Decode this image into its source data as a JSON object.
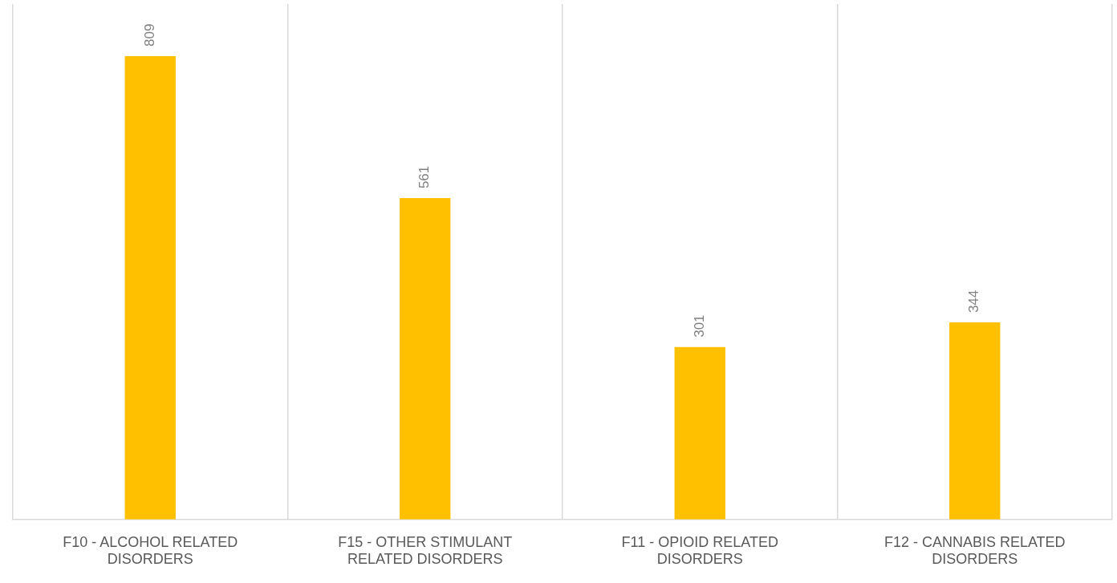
{
  "chart_data": {
    "type": "bar",
    "categories": [
      "F10 - ALCOHOL RELATED DISORDERS",
      "F15 - OTHER STIMULANT RELATED DISORDERS",
      "F11 - OPIOID RELATED DISORDERS",
      "F12 - CANNABIS RELATED DISORDERS"
    ],
    "values": [
      809,
      561,
      301,
      344
    ],
    "color": "#ffc000",
    "ylim": [
      0,
      900
    ],
    "data_labels": true,
    "grid": "x",
    "tick_labels": "x",
    "legend": false
  }
}
